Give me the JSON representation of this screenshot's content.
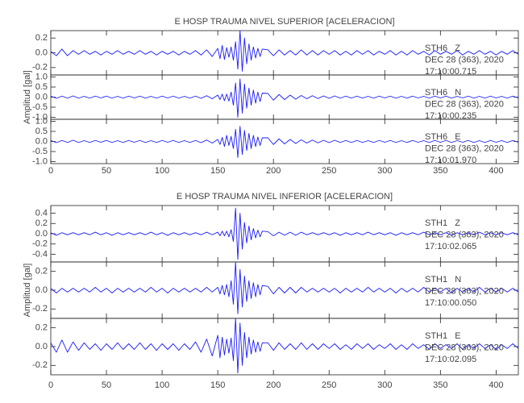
{
  "chart_data": [
    {
      "type": "line",
      "title": "E HOSP TRAUMA NIVEL SUPERIOR [ACELERACION]",
      "y_label": "Amplitud [gal]",
      "xlim": [
        0,
        420
      ],
      "xticks": [
        0,
        50,
        100,
        150,
        200,
        250,
        300,
        350,
        400
      ],
      "x": [
        0,
        5,
        10,
        15,
        20,
        25,
        30,
        35,
        40,
        45,
        50,
        55,
        60,
        65,
        70,
        75,
        80,
        85,
        90,
        95,
        100,
        105,
        110,
        115,
        120,
        125,
        130,
        135,
        140,
        145,
        150,
        152,
        154,
        156,
        158,
        160,
        162,
        164,
        166,
        168,
        170,
        172,
        174,
        176,
        178,
        180,
        182,
        184,
        186,
        188,
        190,
        195,
        200,
        205,
        210,
        215,
        220,
        225,
        230,
        235,
        240,
        245,
        250,
        255,
        260,
        265,
        270,
        275,
        280,
        285,
        290,
        295,
        300,
        305,
        310,
        315,
        320,
        325,
        330,
        335,
        340,
        345,
        350,
        355,
        360,
        365,
        370,
        375,
        380,
        385,
        390,
        395,
        400,
        405,
        410,
        415,
        420
      ],
      "panels": [
        {
          "color": "#1a1aff",
          "ylim": [
            -0.3,
            0.3
          ],
          "yticks": [
            -0.2,
            {
              "value": 0,
              "label": "0.0"
            },
            0.2
          ],
          "annotations": [
            "STH6   Z",
            "DEC 28 (363), 2020",
            "17:10:00.715"
          ],
          "values": [
            0.02,
            -0.04,
            0.05,
            -0.04,
            0.03,
            -0.02,
            0.03,
            -0.02,
            0.02,
            -0.03,
            0.02,
            -0.02,
            0.03,
            -0.02,
            0.02,
            -0.02,
            0.03,
            -0.02,
            0.02,
            -0.03,
            0.02,
            -0.02,
            0.02,
            -0.03,
            0.02,
            -0.02,
            0.03,
            -0.03,
            0.04,
            -0.05,
            0.06,
            -0.08,
            0.1,
            -0.09,
            0.07,
            -0.06,
            0.08,
            -0.1,
            0.15,
            -0.22,
            0.3,
            -0.25,
            0.2,
            -0.15,
            0.12,
            -0.1,
            0.08,
            -0.07,
            0.06,
            -0.05,
            0.05,
            0.04,
            -0.04,
            0.04,
            -0.03,
            0.03,
            -0.03,
            0.04,
            -0.03,
            0.03,
            -0.03,
            0.03,
            -0.02,
            0.03,
            -0.03,
            0.02,
            -0.03,
            0.03,
            -0.02,
            0.03,
            -0.03,
            0.02,
            -0.02,
            0.03,
            -0.03,
            0.02,
            -0.03,
            0.03,
            -0.02,
            0.02,
            -0.03,
            0.03,
            -0.02,
            0.02,
            -0.02,
            0.03,
            -0.03,
            0.02,
            -0.02,
            0.03,
            -0.02,
            0.02,
            -0.03,
            0.02,
            -0.02,
            0.03,
            -0.02
          ]
        },
        {
          "color": "#1a1aff",
          "ylim": [
            -1.1,
            1.1
          ],
          "yticks": [
            {
              "value": -1,
              "label": "-1.0"
            },
            -0.5,
            {
              "value": 0,
              "label": "0.0"
            },
            0.5,
            {
              "value": 1,
              "label": "1.0"
            }
          ],
          "annotations": [
            "STH6   N",
            "DEC 28 (363), 2020",
            "17:10:00.235"
          ],
          "values": [
            0.05,
            -0.06,
            0.05,
            -0.05,
            0.06,
            -0.05,
            0.04,
            -0.05,
            0.05,
            -0.04,
            0.05,
            -0.05,
            0.04,
            -0.05,
            0.05,
            -0.04,
            0.05,
            -0.05,
            0.04,
            -0.05,
            0.05,
            -0.04,
            0.05,
            -0.05,
            0.04,
            -0.05,
            0.05,
            -0.06,
            0.07,
            -0.08,
            0.1,
            -0.12,
            0.15,
            -0.18,
            0.15,
            -0.2,
            0.25,
            -0.4,
            0.7,
            -1.0,
            0.9,
            -0.8,
            0.65,
            -0.55,
            0.45,
            -0.4,
            0.35,
            -0.3,
            0.25,
            -0.22,
            0.2,
            0.18,
            -0.15,
            0.13,
            -0.12,
            0.1,
            -0.1,
            0.08,
            -0.08,
            0.07,
            -0.07,
            0.06,
            -0.06,
            0.06,
            -0.05,
            0.05,
            -0.05,
            0.05,
            -0.05,
            0.04,
            -0.05,
            0.05,
            -0.04,
            0.05,
            -0.05,
            0.04,
            -0.05,
            0.05,
            -0.04,
            0.04,
            -0.05,
            0.05,
            -0.04,
            0.05,
            -0.05,
            0.04,
            -0.04,
            0.05,
            -0.05,
            0.04,
            -0.05,
            0.05,
            -0.04,
            0.04,
            -0.05,
            0.05,
            -0.04
          ]
        },
        {
          "color": "#1a1aff",
          "ylim": [
            -1.1,
            1.1
          ],
          "yticks": [
            {
              "value": -1,
              "label": "-1.0"
            },
            -0.5,
            {
              "value": 0,
              "label": "0.0"
            },
            0.5,
            {
              "value": 1,
              "label": "1.0"
            }
          ],
          "annotations": [
            "STH6   E",
            "DEC 28 (363), 2020",
            "17:10:01.970"
          ],
          "values": [
            0.05,
            -0.06,
            0.05,
            -0.05,
            0.06,
            -0.05,
            0.04,
            -0.05,
            0.05,
            -0.04,
            0.05,
            -0.05,
            0.04,
            -0.05,
            0.05,
            -0.04,
            0.05,
            -0.05,
            0.04,
            -0.05,
            0.05,
            -0.04,
            0.05,
            -0.05,
            0.04,
            -0.05,
            0.05,
            -0.06,
            0.07,
            -0.08,
            0.1,
            -0.15,
            0.2,
            -0.25,
            0.3,
            -0.2,
            0.25,
            -0.35,
            0.6,
            -0.8,
            0.75,
            -0.65,
            0.55,
            -0.45,
            0.4,
            -0.35,
            0.3,
            -0.25,
            0.22,
            -0.2,
            0.18,
            0.18,
            -0.15,
            0.13,
            -0.12,
            0.1,
            -0.1,
            0.08,
            -0.08,
            0.07,
            -0.07,
            0.06,
            -0.06,
            0.06,
            -0.05,
            0.05,
            -0.05,
            0.05,
            -0.05,
            0.04,
            -0.05,
            0.05,
            -0.04,
            0.05,
            -0.05,
            0.04,
            -0.05,
            0.05,
            -0.04,
            0.04,
            -0.05,
            0.05,
            -0.04,
            0.05,
            -0.05,
            0.04,
            -0.04,
            0.05,
            -0.05,
            0.04,
            -0.05,
            0.05,
            -0.04,
            0.04,
            -0.05,
            0.05,
            -0.04
          ]
        }
      ]
    },
    {
      "type": "line",
      "title": "E HOSP TRAUMA NIVEL INFERIOR [ACELERACION]",
      "y_label": "Amplitud [gal]",
      "xlim": [
        0,
        420
      ],
      "xticks": [
        0,
        50,
        100,
        150,
        200,
        250,
        300,
        350,
        400
      ],
      "x": [
        0,
        5,
        10,
        15,
        20,
        25,
        30,
        35,
        40,
        45,
        50,
        55,
        60,
        65,
        70,
        75,
        80,
        85,
        90,
        95,
        100,
        105,
        110,
        115,
        120,
        125,
        130,
        135,
        140,
        145,
        150,
        152,
        154,
        156,
        158,
        160,
        162,
        164,
        166,
        168,
        170,
        172,
        174,
        176,
        178,
        180,
        182,
        184,
        186,
        188,
        190,
        195,
        200,
        205,
        210,
        215,
        220,
        225,
        230,
        235,
        240,
        245,
        250,
        255,
        260,
        265,
        270,
        275,
        280,
        285,
        290,
        295,
        300,
        305,
        310,
        315,
        320,
        325,
        330,
        335,
        340,
        345,
        350,
        355,
        360,
        365,
        370,
        375,
        380,
        385,
        390,
        395,
        400,
        405,
        410,
        415,
        420
      ],
      "panels": [
        {
          "color": "#1a1aff",
          "ylim": [
            -0.55,
            0.55
          ],
          "yticks": [
            -0.4,
            -0.2,
            {
              "value": 0,
              "label": "0.0"
            },
            0.2,
            0.4
          ],
          "annotations": [
            "STH1   Z",
            "DEC 28 (363), 2020",
            "17:10:02.065"
          ],
          "values": [
            0.02,
            -0.03,
            0.02,
            -0.02,
            0.02,
            -0.02,
            0.02,
            -0.02,
            0.03,
            -0.02,
            0.02,
            -0.03,
            0.02,
            -0.02,
            0.02,
            -0.02,
            0.02,
            -0.02,
            0.03,
            -0.02,
            0.02,
            -0.03,
            0.02,
            -0.02,
            0.02,
            -0.02,
            0.02,
            -0.02,
            0.03,
            -0.02,
            0.03,
            -0.04,
            0.05,
            -0.04,
            0.05,
            -0.06,
            0.08,
            -0.15,
            0.5,
            -0.5,
            0.4,
            -0.3,
            0.22,
            -0.18,
            0.15,
            -0.12,
            0.1,
            -0.08,
            0.07,
            -0.06,
            0.05,
            0.04,
            -0.04,
            0.03,
            -0.03,
            0.03,
            -0.03,
            0.03,
            -0.02,
            0.02,
            -0.02,
            0.02,
            -0.02,
            0.02,
            -0.03,
            0.02,
            -0.02,
            0.02,
            -0.02,
            0.03,
            -0.02,
            0.02,
            -0.02,
            0.02,
            -0.03,
            0.02,
            -0.02,
            0.02,
            -0.02,
            0.03,
            -0.02,
            0.02,
            -0.02,
            0.02,
            -0.03,
            0.02,
            -0.02,
            0.02,
            -0.02,
            0.03,
            -0.02,
            0.02,
            -0.02,
            0.02,
            -0.02,
            0.02,
            -0.02
          ]
        },
        {
          "color": "#1a1aff",
          "ylim": [
            -0.3,
            0.3
          ],
          "yticks": [
            -0.2,
            {
              "value": 0,
              "label": "0.0"
            },
            0.2
          ],
          "annotations": [
            "STH1   N",
            "DEC 28 (363), 2020",
            "17:10:00.050"
          ],
          "values": [
            0.02,
            -0.03,
            0.02,
            -0.02,
            0.02,
            -0.02,
            0.02,
            -0.02,
            0.03,
            -0.02,
            0.02,
            -0.03,
            0.02,
            -0.02,
            0.02,
            -0.02,
            0.02,
            -0.02,
            0.03,
            -0.02,
            0.02,
            -0.03,
            0.02,
            -0.02,
            0.02,
            -0.02,
            0.02,
            -0.02,
            0.03,
            -0.02,
            0.03,
            -0.04,
            0.05,
            -0.05,
            0.06,
            -0.07,
            0.1,
            -0.15,
            0.3,
            -0.25,
            0.22,
            -0.18,
            0.15,
            -0.12,
            0.1,
            -0.09,
            0.08,
            -0.07,
            0.06,
            -0.05,
            0.05,
            0.04,
            -0.04,
            0.03,
            -0.03,
            0.03,
            -0.03,
            0.03,
            -0.02,
            0.02,
            -0.02,
            0.02,
            -0.02,
            0.02,
            -0.03,
            0.02,
            -0.02,
            0.02,
            -0.02,
            0.03,
            -0.02,
            0.02,
            -0.02,
            0.02,
            -0.03,
            0.02,
            -0.02,
            0.02,
            -0.02,
            0.03,
            -0.02,
            0.02,
            -0.02,
            0.02,
            -0.03,
            0.02,
            -0.02,
            0.02,
            -0.02,
            0.03,
            -0.02,
            0.02,
            -0.02,
            0.02,
            -0.02,
            0.02,
            -0.02
          ]
        },
        {
          "color": "#1a1aff",
          "ylim": [
            -0.3,
            0.3
          ],
          "yticks": [
            -0.2,
            {
              "value": 0,
              "label": "0.0"
            },
            0.2
          ],
          "annotations": [
            "STH1   E",
            "DEC 28 (363), 2020",
            "17:10:02.095"
          ],
          "values": [
            0.04,
            -0.06,
            0.07,
            -0.06,
            0.05,
            -0.04,
            0.04,
            -0.03,
            0.03,
            -0.04,
            0.03,
            -0.03,
            0.04,
            -0.03,
            0.03,
            -0.03,
            0.04,
            -0.03,
            0.03,
            -0.04,
            0.03,
            -0.03,
            0.03,
            -0.04,
            0.03,
            -0.03,
            0.05,
            -0.06,
            0.08,
            -0.1,
            0.12,
            -0.12,
            0.1,
            -0.09,
            0.08,
            -0.07,
            0.09,
            -0.15,
            0.3,
            -0.28,
            0.25,
            -0.2,
            0.15,
            -0.12,
            0.1,
            -0.08,
            0.07,
            -0.06,
            0.05,
            -0.05,
            0.04,
            0.04,
            -0.04,
            0.04,
            -0.03,
            0.03,
            -0.03,
            0.04,
            -0.03,
            0.03,
            -0.03,
            0.03,
            -0.02,
            0.03,
            -0.03,
            0.02,
            -0.03,
            0.03,
            -0.02,
            0.03,
            -0.03,
            0.02,
            -0.02,
            0.03,
            -0.03,
            0.02,
            -0.03,
            0.03,
            -0.02,
            0.02,
            -0.03,
            0.03,
            -0.02,
            0.02,
            -0.02,
            0.03,
            -0.03,
            0.02,
            -0.02,
            0.03,
            -0.02,
            0.02,
            -0.03,
            0.02,
            -0.02,
            0.03,
            -0.02
          ]
        }
      ]
    }
  ]
}
